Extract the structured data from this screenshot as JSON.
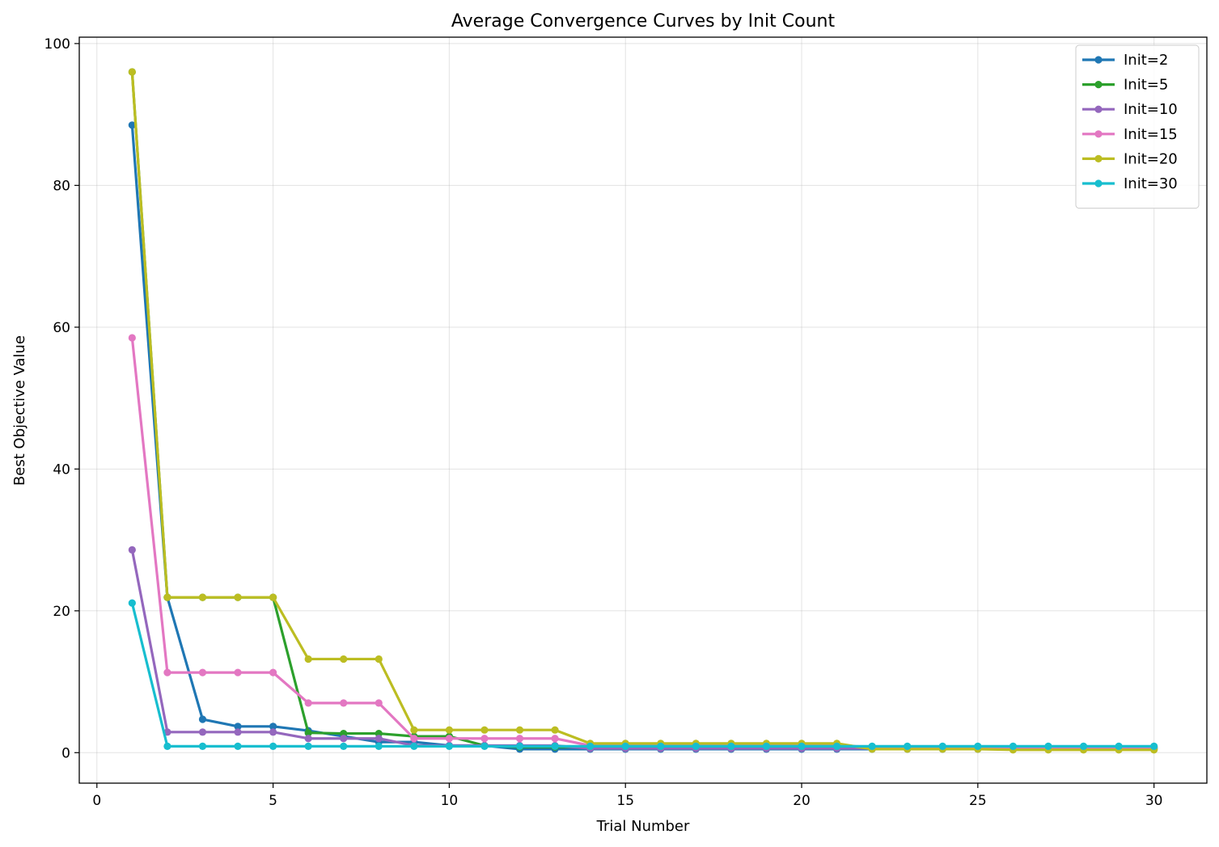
{
  "chart_data": {
    "type": "line",
    "title": "Average Convergence Curves by Init Count",
    "xlabel": "Trial Number",
    "ylabel": "Best Objective Value",
    "xlim": [
      -0.5,
      31.5
    ],
    "ylim": [
      -4.3,
      100.9
    ],
    "xticks": [
      0,
      5,
      10,
      15,
      20,
      25,
      30
    ],
    "yticks": [
      0,
      20,
      40,
      60,
      80,
      100
    ],
    "grid": true,
    "legend_position": "top-right",
    "x": [
      1,
      2,
      3,
      4,
      5,
      6,
      7,
      8,
      9,
      10,
      11,
      12,
      13,
      14,
      15,
      16,
      17,
      18,
      19,
      20,
      21,
      22,
      23,
      24,
      25,
      26,
      27,
      28,
      29,
      30
    ],
    "series": [
      {
        "name": "Init=2",
        "color": "#1f77b4",
        "values": [
          88.5,
          21.9,
          4.7,
          3.7,
          3.7,
          3.1,
          2.3,
          1.5,
          1.5,
          1.0,
          1.0,
          0.5,
          0.5,
          0.5,
          0.5,
          0.5,
          0.5,
          0.5,
          0.5,
          0.5,
          0.5,
          0.5,
          0.5,
          0.5,
          0.5,
          0.5,
          0.5,
          0.5,
          0.5,
          0.5
        ]
      },
      {
        "name": "Init=5",
        "color": "#2ca02c",
        "values": [
          96.0,
          21.9,
          21.9,
          21.9,
          21.9,
          2.8,
          2.7,
          2.7,
          2.3,
          2.3,
          1.0,
          0.8,
          0.8,
          0.8,
          0.7,
          0.7,
          0.7,
          0.7,
          0.7,
          0.7,
          0.7,
          0.7,
          0.7,
          0.7,
          0.7,
          0.7,
          0.7,
          0.7,
          0.7,
          0.7
        ]
      },
      {
        "name": "Init=10",
        "color": "#9467bd",
        "values": [
          28.6,
          2.9,
          2.9,
          2.9,
          2.9,
          2.0,
          2.0,
          2.0,
          1.0,
          1.0,
          1.0,
          1.0,
          1.0,
          0.6,
          0.6,
          0.6,
          0.6,
          0.6,
          0.6,
          0.6,
          0.6,
          0.6,
          0.6,
          0.6,
          0.6,
          0.6,
          0.6,
          0.6,
          0.6,
          0.6
        ]
      },
      {
        "name": "Init=15",
        "color": "#e377c2",
        "values": [
          58.5,
          11.3,
          11.3,
          11.3,
          11.3,
          7.0,
          7.0,
          7.0,
          2.0,
          2.0,
          2.0,
          2.0,
          2.0,
          1.0,
          1.0,
          1.0,
          1.0,
          1.0,
          1.0,
          1.0,
          1.0,
          0.8,
          0.8,
          0.8,
          0.8,
          0.8,
          0.8,
          0.8,
          0.8,
          0.8
        ]
      },
      {
        "name": "Init=20",
        "color": "#bcbd22",
        "values": [
          96.0,
          21.9,
          21.9,
          21.9,
          21.9,
          13.2,
          13.2,
          13.2,
          3.2,
          3.2,
          3.2,
          3.2,
          3.2,
          1.3,
          1.3,
          1.3,
          1.3,
          1.3,
          1.3,
          1.3,
          1.3,
          0.5,
          0.5,
          0.5,
          0.5,
          0.4,
          0.4,
          0.4,
          0.4,
          0.4
        ]
      },
      {
        "name": "Init=30",
        "color": "#17becf",
        "values": [
          21.1,
          0.9,
          0.9,
          0.9,
          0.9,
          0.9,
          0.9,
          0.9,
          0.9,
          0.9,
          0.9,
          0.9,
          0.9,
          0.9,
          0.9,
          0.9,
          0.9,
          0.9,
          0.9,
          0.9,
          0.9,
          0.9,
          0.9,
          0.9,
          0.9,
          0.9,
          0.9,
          0.9,
          0.9,
          0.9
        ]
      }
    ]
  }
}
